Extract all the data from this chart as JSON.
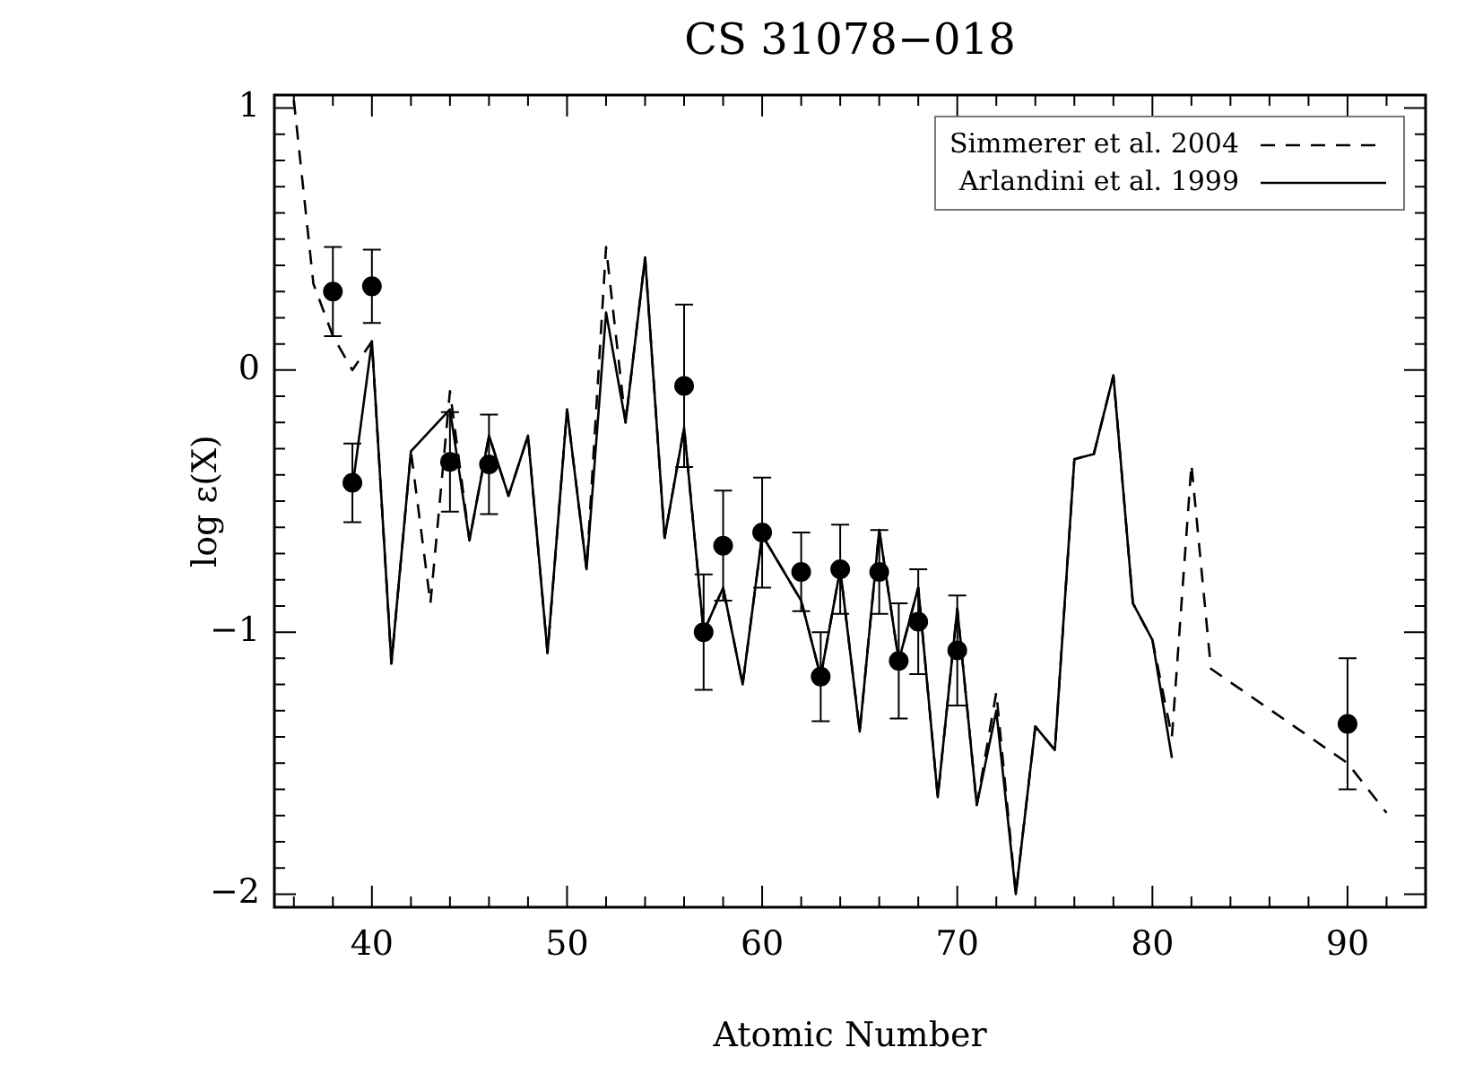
{
  "chart_data": {
    "type": "line",
    "title": "CS 31078−018",
    "xlabel": "Atomic Number",
    "ylabel": "log ε(X)",
    "xlim": [
      35,
      94
    ],
    "xticks": [
      {
        "value": 36,
        "label": null
      },
      {
        "value": 38,
        "label": null
      },
      40,
      {
        "value": 42,
        "label": null
      },
      {
        "value": 44,
        "label": null
      },
      {
        "value": 46,
        "label": null
      },
      {
        "value": 48,
        "label": null
      },
      50,
      {
        "value": 52,
        "label": null
      },
      {
        "value": 54,
        "label": null
      },
      {
        "value": 56,
        "label": null
      },
      {
        "value": 58,
        "label": null
      },
      60,
      {
        "value": 62,
        "label": null
      },
      {
        "value": 64,
        "label": null
      },
      {
        "value": 66,
        "label": null
      },
      {
        "value": 68,
        "label": null
      },
      70,
      {
        "value": 72,
        "label": null
      },
      {
        "value": 74,
        "label": null
      },
      {
        "value": 76,
        "label": null
      },
      {
        "value": 78,
        "label": null
      },
      80,
      {
        "value": 82,
        "label": null
      },
      {
        "value": 84,
        "label": null
      },
      {
        "value": 86,
        "label": null
      },
      {
        "value": 88,
        "label": null
      },
      90,
      {
        "value": 92,
        "label": null
      }
    ],
    "ylim": [
      -2.05,
      1.05
    ],
    "yticks": [
      -2,
      {
        "value": -1.9,
        "label": null
      },
      {
        "value": -1.8,
        "label": null
      },
      {
        "value": -1.7,
        "label": null
      },
      {
        "value": -1.6,
        "label": null
      },
      {
        "value": -1.5,
        "label": null
      },
      {
        "value": -1.4,
        "label": null
      },
      {
        "value": -1.3,
        "label": null
      },
      {
        "value": -1.2,
        "label": null
      },
      {
        "value": -1.1,
        "label": null
      },
      -1,
      {
        "value": -0.9,
        "label": null
      },
      {
        "value": -0.8,
        "label": null
      },
      {
        "value": -0.7,
        "label": null
      },
      {
        "value": -0.6,
        "label": null
      },
      {
        "value": -0.5,
        "label": null
      },
      {
        "value": -0.4,
        "label": null
      },
      {
        "value": -0.3,
        "label": null
      },
      {
        "value": -0.2,
        "label": null
      },
      {
        "value": -0.1,
        "label": null
      },
      0,
      {
        "value": 0.1,
        "label": null
      },
      {
        "value": 0.2,
        "label": null
      },
      {
        "value": 0.3,
        "label": null
      },
      {
        "value": 0.4,
        "label": null
      },
      {
        "value": 0.5,
        "label": null
      },
      {
        "value": 0.6,
        "label": null
      },
      {
        "value": 0.7,
        "label": null
      },
      {
        "value": 0.8,
        "label": null
      },
      {
        "value": 0.9,
        "label": null
      },
      1
    ],
    "grid": false,
    "legend": "top right",
    "marker": "none",
    "series": [
      {
        "name": "Simmerer et al. 2004",
        "line_style": "dashed",
        "color": "#000000",
        "x": [
          36,
          37,
          38,
          39,
          40,
          41,
          42,
          43,
          44,
          45,
          46,
          47,
          48,
          49,
          50,
          51,
          52,
          53,
          54,
          55,
          56,
          57,
          58,
          59,
          60,
          62,
          63,
          64,
          65,
          66,
          67,
          68,
          69,
          70,
          71,
          72,
          73,
          74,
          75,
          76,
          77,
          78,
          79,
          80,
          81,
          82,
          83,
          90,
          92
        ],
        "values": [
          1.03,
          0.33,
          0.13,
          0.0,
          0.11,
          -1.12,
          -0.31,
          -0.89,
          -0.08,
          -0.65,
          -0.25,
          -0.48,
          -0.25,
          -1.08,
          -0.15,
          -0.76,
          0.47,
          -0.2,
          0.43,
          -0.64,
          -0.22,
          -1.0,
          -0.83,
          -1.2,
          -0.63,
          -0.88,
          -1.17,
          -0.76,
          -1.38,
          -0.61,
          -1.11,
          -0.83,
          -1.63,
          -0.91,
          -1.66,
          -1.23,
          -2.0,
          -1.36,
          -1.45,
          -0.34,
          -0.32,
          -0.02,
          -0.89,
          -1.03,
          -1.4,
          -0.36,
          -1.14,
          -1.5,
          -1.69
        ]
      },
      {
        "name": "Arlandini et al. 1999",
        "line_style": "solid",
        "color": "#000000",
        "x": [
          39,
          40,
          41,
          42,
          44,
          45,
          46,
          47,
          48,
          49,
          50,
          51,
          52,
          53,
          54,
          55,
          56,
          57,
          58,
          59,
          60,
          62,
          63,
          64,
          65,
          66,
          67,
          68,
          69,
          70,
          71,
          72,
          73,
          74,
          75,
          76,
          77,
          78,
          79,
          80,
          81
        ],
        "values": [
          -0.45,
          0.11,
          -1.12,
          -0.31,
          -0.15,
          -0.65,
          -0.25,
          -0.48,
          -0.25,
          -1.08,
          -0.15,
          -0.76,
          0.22,
          -0.2,
          0.43,
          -0.64,
          -0.22,
          -1.0,
          -0.83,
          -1.2,
          -0.63,
          -0.88,
          -1.17,
          -0.76,
          -1.38,
          -0.61,
          -1.11,
          -0.83,
          -1.63,
          -0.91,
          -1.66,
          -1.3,
          -2.0,
          -1.36,
          -1.45,
          -0.34,
          -0.32,
          -0.02,
          -0.89,
          -1.03,
          -1.48
        ]
      },
      {
        "type": "scatter",
        "marker": "circle",
        "color": "#000000",
        "x": [
          38,
          39,
          40,
          44,
          46,
          56,
          57,
          58,
          60,
          62,
          63,
          64,
          66,
          67,
          68,
          70,
          90
        ],
        "values": [
          0.3,
          -0.43,
          0.32,
          -0.35,
          -0.36,
          -0.06,
          -1.0,
          -0.67,
          -0.62,
          -0.77,
          -1.17,
          -0.76,
          -0.77,
          -1.11,
          -0.96,
          -1.07,
          -1.35
        ],
        "errors": [
          0.17,
          0.15,
          0.14,
          0.19,
          0.19,
          0.31,
          0.22,
          0.21,
          0.21,
          0.15,
          0.17,
          0.17,
          0.16,
          0.22,
          0.2,
          0.21,
          0.25
        ]
      }
    ]
  }
}
